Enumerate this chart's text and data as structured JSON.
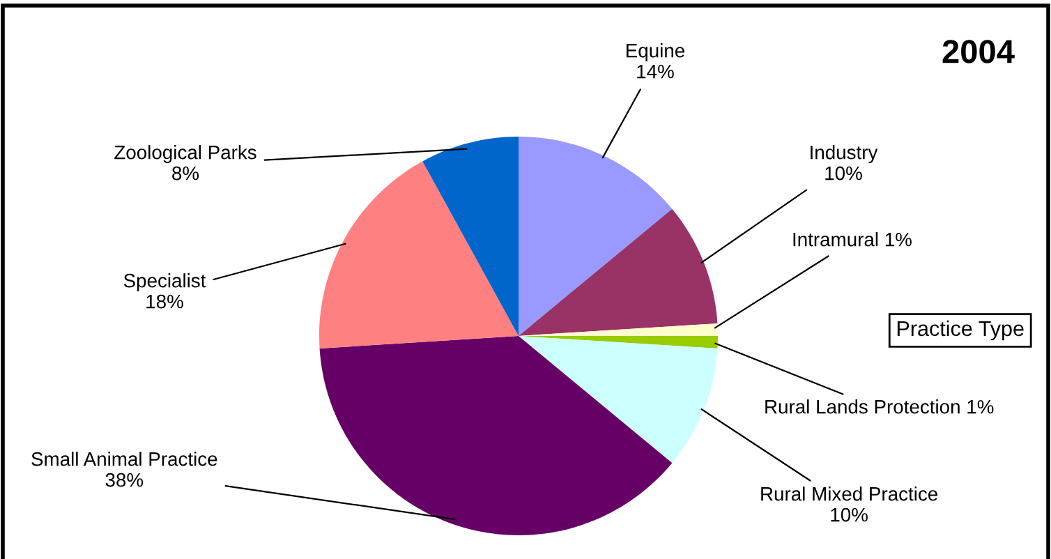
{
  "chart_data": {
    "type": "pie",
    "title": "2004",
    "legend_title": "Practice Type",
    "categories": [
      "Equine",
      "Industry",
      "Intramural",
      "Rural Lands Protection",
      "Rural Mixed Practice",
      "Small Animal Practice",
      "Specialist",
      "Zoological Parks"
    ],
    "values": [
      14,
      10,
      1,
      1,
      10,
      38,
      18,
      8
    ],
    "value_labels": [
      "14%",
      "10%",
      "1%",
      "1%",
      "10%",
      "38%",
      "18%",
      "8%"
    ],
    "colors": [
      "#9999ff",
      "#993366",
      "#ffffcc",
      "#99cc00",
      "#ccffff",
      "#660066",
      "#ff8080",
      "#0066cc"
    ]
  }
}
